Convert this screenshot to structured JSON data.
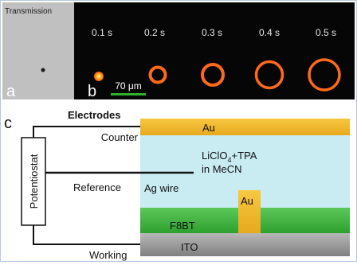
{
  "panel_a": {
    "header": "Transmission",
    "letter": "a"
  },
  "panel_b": {
    "letter": "b",
    "times": [
      "0.1 s",
      "0.2 s",
      "0.3 s",
      "0.4 s",
      "0.5 s"
    ],
    "scale_bar": "70 μm"
  },
  "panel_c": {
    "letter": "c",
    "heading": "Electrodes",
    "potentiostat": "Potentiostat",
    "counter": "Counter",
    "reference": "Reference",
    "working": "Working",
    "au_top": "Au",
    "electrolyte_line1_pre": "LiClO",
    "electrolyte_line1_sub": "4",
    "electrolyte_line1_post": "+TPA",
    "electrolyte_line2": "in MeCN",
    "ag_wire": "Ag wire",
    "au_contact": "Au",
    "f8bt": "F8BT",
    "ito": "ITO"
  },
  "colors": {
    "au": "#f2b928",
    "electrolyte": "#c9ecf3",
    "f8bt": "#3bb63b",
    "ito": "#9e9e9e",
    "ring": "#ff6a1a"
  }
}
